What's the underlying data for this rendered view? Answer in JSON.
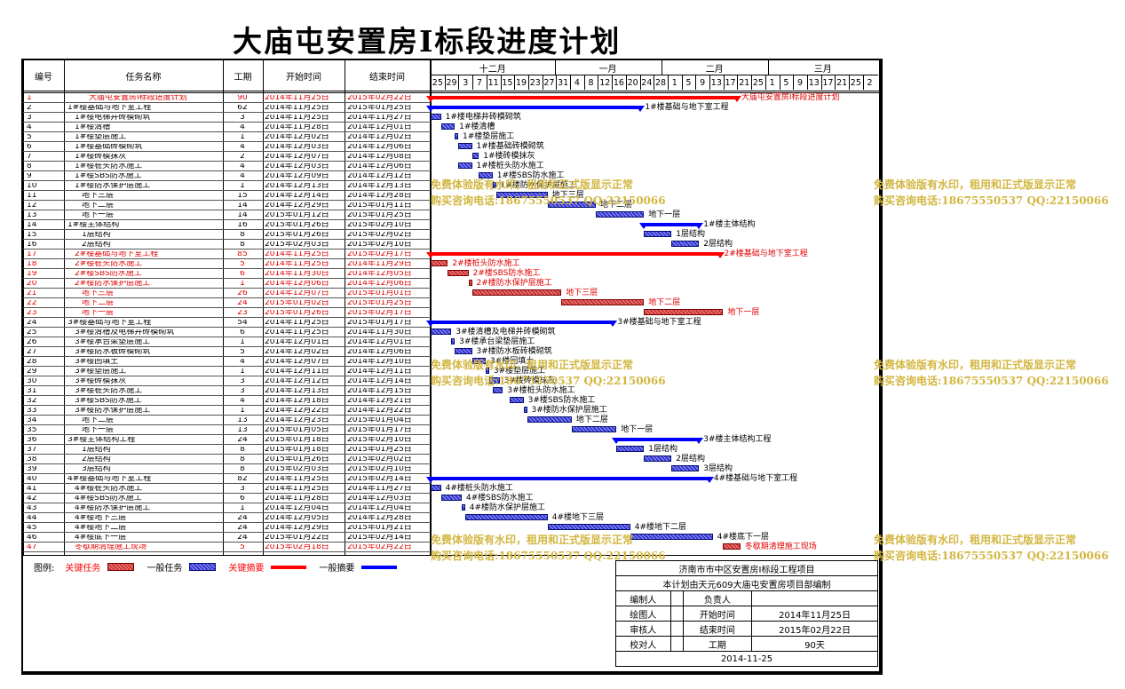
{
  "title": "大庙屯安置房Ⅰ标段进度计划",
  "columns": {
    "id": "编号",
    "name": "任务名称",
    "duration": "工期",
    "start": "开始时间",
    "end": "结束时间"
  },
  "months": [
    "十二月",
    "一月",
    "二月",
    "三月"
  ],
  "days": [
    "25",
    "29",
    "3",
    "7",
    "11",
    "15",
    "19",
    "23",
    "27",
    "31",
    "4",
    "8",
    "12",
    "16",
    "20",
    "24",
    "28",
    "1",
    "5",
    "9",
    "13",
    "17",
    "21",
    "25",
    "1",
    "5",
    "9",
    "13",
    "17",
    "21",
    "25",
    "2"
  ],
  "tasks": [
    {
      "id": "1",
      "name": "大庙屯安置房Ⅰ标段进度计划",
      "dur": "90",
      "start": "2014年11月25日",
      "end": "2015年02月22日",
      "red": true,
      "indent": 3,
      "type": "sum",
      "s": 0,
      "e": 89,
      "label": "大庙屯安置房Ⅰ标段进度计划"
    },
    {
      "id": "2",
      "name": "1#楼基础与地下室工程",
      "dur": "62",
      "start": "2014年11月25日",
      "end": "2015年01月25日",
      "red": false,
      "indent": 0,
      "type": "sum",
      "s": 0,
      "e": 61,
      "label": "1#楼基础与地下室工程"
    },
    {
      "id": "3",
      "name": "1#楼电梯井砖模砌筑",
      "dur": "3",
      "start": "2014年11月25日",
      "end": "2014年11月27日",
      "red": false,
      "indent": 1,
      "type": "task",
      "s": 0,
      "e": 3,
      "label": "1#楼电梯井砖模砌筑"
    },
    {
      "id": "4",
      "name": "1#楼清槽",
      "dur": "4",
      "start": "2014年11月28日",
      "end": "2014年12月01日",
      "red": false,
      "indent": 1,
      "type": "task",
      "s": 3,
      "e": 7,
      "label": "1#楼清槽"
    },
    {
      "id": "5",
      "name": "1#楼垫层施工",
      "dur": "1",
      "start": "2014年12月02日",
      "end": "2014年12月02日",
      "red": false,
      "indent": 1,
      "type": "task",
      "s": 7,
      "e": 8,
      "label": "1#楼垫层施工"
    },
    {
      "id": "6",
      "name": "1#楼基础砖模砌筑",
      "dur": "4",
      "start": "2014年12月03日",
      "end": "2014年12月06日",
      "red": false,
      "indent": 1,
      "type": "task",
      "s": 8,
      "e": 12,
      "label": "1#楼基础砖模砌筑"
    },
    {
      "id": "7",
      "name": "1#楼砖模抹灰",
      "dur": "2",
      "start": "2014年12月07日",
      "end": "2014年12月08日",
      "red": false,
      "indent": 1,
      "type": "task",
      "s": 12,
      "e": 14,
      "label": "1#楼砖模抹灰"
    },
    {
      "id": "8",
      "name": "1#楼桩头防水施工",
      "dur": "4",
      "start": "2014年12月03日",
      "end": "2014年12月06日",
      "red": false,
      "indent": 1,
      "type": "task",
      "s": 8,
      "e": 12,
      "label": "1#楼桩头防水施工"
    },
    {
      "id": "9",
      "name": "1#楼SBS防水施工",
      "dur": "4",
      "start": "2014年12月09日",
      "end": "2014年12月12日",
      "red": false,
      "indent": 1,
      "type": "task",
      "s": 14,
      "e": 18,
      "label": "1#楼SBS防水施工"
    },
    {
      "id": "10",
      "name": "1#楼防水保护层施工",
      "dur": "1",
      "start": "2014年12月13日",
      "end": "2014年12月13日",
      "red": false,
      "indent": 1,
      "type": "task",
      "s": 18,
      "e": 19,
      "label": "1#楼防水保护层施工"
    },
    {
      "id": "11",
      "name": "地下三层",
      "dur": "15",
      "start": "2014年12月14日",
      "end": "2014年12月28日",
      "red": false,
      "indent": 2,
      "type": "task",
      "s": 19,
      "e": 34,
      "label": "地下三层"
    },
    {
      "id": "12",
      "name": "地下二层",
      "dur": "14",
      "start": "2014年12月29日",
      "end": "2015年01月11日",
      "red": false,
      "indent": 2,
      "type": "task",
      "s": 34,
      "e": 48,
      "label": "地下二层"
    },
    {
      "id": "13",
      "name": "地下一层",
      "dur": "14",
      "start": "2015年01月12日",
      "end": "2015年01月25日",
      "red": false,
      "indent": 2,
      "type": "task",
      "s": 48,
      "e": 62,
      "label": "地下一层"
    },
    {
      "id": "14",
      "name": "1#楼主体结构",
      "dur": "16",
      "start": "2015年01月26日",
      "end": "2015年02月10日",
      "red": false,
      "indent": 0,
      "type": "sum",
      "s": 62,
      "e": 78,
      "label": "1#楼主体结构"
    },
    {
      "id": "15",
      "name": "1层结构",
      "dur": "8",
      "start": "2015年01月26日",
      "end": "2015年02月02日",
      "red": false,
      "indent": 2,
      "type": "task",
      "s": 62,
      "e": 70,
      "label": "1层结构"
    },
    {
      "id": "16",
      "name": "2层结构",
      "dur": "8",
      "start": "2015年02月03日",
      "end": "2015年02月10日",
      "red": false,
      "indent": 2,
      "type": "task",
      "s": 70,
      "e": 78,
      "label": "2层结构"
    },
    {
      "id": "17",
      "name": "2#楼基础与地下室工程",
      "dur": "85",
      "start": "2014年11月25日",
      "end": "2015年02月17日",
      "red": true,
      "indent": 1,
      "type": "sum",
      "s": 0,
      "e": 84,
      "label": "2#楼基础与地下室工程"
    },
    {
      "id": "18",
      "name": "2#楼桩头防水施工",
      "dur": "5",
      "start": "2014年11月25日",
      "end": "2014年11月29日",
      "red": true,
      "indent": 1,
      "type": "task",
      "s": 0,
      "e": 5,
      "label": "2#楼桩头防水施工"
    },
    {
      "id": "19",
      "name": "2#楼SBS防水施工",
      "dur": "6",
      "start": "2014年11月30日",
      "end": "2014年12月05日",
      "red": true,
      "indent": 1,
      "type": "task",
      "s": 5,
      "e": 11,
      "label": "2#楼SBS防水施工"
    },
    {
      "id": "20",
      "name": "2#楼防水保护层施工",
      "dur": "1",
      "start": "2014年12月06日",
      "end": "2014年12月06日",
      "red": true,
      "indent": 1,
      "type": "task",
      "s": 11,
      "e": 12,
      "label": "2#楼防水保护层施工"
    },
    {
      "id": "21",
      "name": "地下三层",
      "dur": "26",
      "start": "2014年12月07日",
      "end": "2015年01月01日",
      "red": true,
      "indent": 2,
      "type": "task",
      "s": 12,
      "e": 38,
      "label": "地下三层"
    },
    {
      "id": "22",
      "name": "地下二层",
      "dur": "24",
      "start": "2015年01月02日",
      "end": "2015年01月25日",
      "red": true,
      "indent": 2,
      "type": "task",
      "s": 38,
      "e": 62,
      "label": "地下二层"
    },
    {
      "id": "23",
      "name": "地下一层",
      "dur": "23",
      "start": "2015年01月26日",
      "end": "2015年02月17日",
      "red": true,
      "indent": 2,
      "type": "task",
      "s": 62,
      "e": 85,
      "label": "地下一层"
    },
    {
      "id": "24",
      "name": "3#楼基础与地下室工程",
      "dur": "54",
      "start": "2014年11月25日",
      "end": "2015年01月17日",
      "red": false,
      "indent": 0,
      "type": "sum",
      "s": 0,
      "e": 53,
      "label": "3#楼基础与地下室工程"
    },
    {
      "id": "25",
      "name": "3#楼清槽及电梯井砖模砌筑",
      "dur": "6",
      "start": "2014年11月25日",
      "end": "2014年11月30日",
      "red": false,
      "indent": 1,
      "type": "task",
      "s": 0,
      "e": 6,
      "label": "3#楼清槽及电梯井砖模砌筑"
    },
    {
      "id": "26",
      "name": "3#楼承台梁垫层施工",
      "dur": "1",
      "start": "2014年12月01日",
      "end": "2014年12月01日",
      "red": false,
      "indent": 1,
      "type": "task",
      "s": 6,
      "e": 7,
      "label": "3#楼承台梁垫层施工"
    },
    {
      "id": "27",
      "name": "3#楼防水板砖模砌筑",
      "dur": "5",
      "start": "2014年12月02日",
      "end": "2014年12月06日",
      "red": false,
      "indent": 1,
      "type": "task",
      "s": 7,
      "e": 12,
      "label": "3#楼防水板砖模砌筑"
    },
    {
      "id": "28",
      "name": "3#楼回填土",
      "dur": "4",
      "start": "2014年12月07日",
      "end": "2014年12月10日",
      "red": false,
      "indent": 1,
      "type": "task",
      "s": 12,
      "e": 16,
      "label": "3#楼回填土"
    },
    {
      "id": "29",
      "name": "3#楼垫层施工",
      "dur": "1",
      "start": "2014年12月11日",
      "end": "2014年12月11日",
      "red": false,
      "indent": 1,
      "type": "task",
      "s": 16,
      "e": 17,
      "label": "3#楼垫层施工"
    },
    {
      "id": "30",
      "name": "3#楼砖模抹灰",
      "dur": "3",
      "start": "2014年12月12日",
      "end": "2014年12月14日",
      "red": false,
      "indent": 1,
      "type": "task",
      "s": 17,
      "e": 20,
      "label": "3#楼砖模抹灰"
    },
    {
      "id": "31",
      "name": "3#楼桩头防水施工",
      "dur": "3",
      "start": "2014年12月13日",
      "end": "2014年12月15日",
      "red": false,
      "indent": 1,
      "type": "task",
      "s": 18,
      "e": 21,
      "label": "3#楼桩头防水施工"
    },
    {
      "id": "32",
      "name": "3#楼SBS防水施工",
      "dur": "4",
      "start": "2014年12月18日",
      "end": "2014年12月21日",
      "red": false,
      "indent": 1,
      "type": "task",
      "s": 23,
      "e": 27,
      "label": "3#楼SBS防水施工"
    },
    {
      "id": "33",
      "name": "3#楼防水保护层施工",
      "dur": "1",
      "start": "2014年12月22日",
      "end": "2014年12月22日",
      "red": false,
      "indent": 1,
      "type": "task",
      "s": 27,
      "e": 28,
      "label": "3#楼防水保护层施工"
    },
    {
      "id": "34",
      "name": "地下二层",
      "dur": "13",
      "start": "2014年12月23日",
      "end": "2015年01月04日",
      "red": false,
      "indent": 2,
      "type": "task",
      "s": 28,
      "e": 41,
      "label": "地下二层"
    },
    {
      "id": "35",
      "name": "地下一层",
      "dur": "13",
      "start": "2015年01月05日",
      "end": "2015年01月17日",
      "red": false,
      "indent": 2,
      "type": "task",
      "s": 41,
      "e": 54,
      "label": "地下一层"
    },
    {
      "id": "36",
      "name": "3#楼主体结构工程",
      "dur": "24",
      "start": "2015年01月18日",
      "end": "2015年02月10日",
      "red": false,
      "indent": 0,
      "type": "sum",
      "s": 54,
      "e": 78,
      "label": "3#楼主体结构工程"
    },
    {
      "id": "37",
      "name": "1层结构",
      "dur": "8",
      "start": "2015年01月18日",
      "end": "2015年01月25日",
      "red": false,
      "indent": 2,
      "type": "task",
      "s": 54,
      "e": 62,
      "label": "1层结构"
    },
    {
      "id": "38",
      "name": "2层结构",
      "dur": "8",
      "start": "2015年01月26日",
      "end": "2015年02月02日",
      "red": false,
      "indent": 2,
      "type": "task",
      "s": 62,
      "e": 70,
      "label": "2层结构"
    },
    {
      "id": "39",
      "name": "3层结构",
      "dur": "8",
      "start": "2015年02月03日",
      "end": "2015年02月10日",
      "red": false,
      "indent": 2,
      "type": "task",
      "s": 70,
      "e": 78,
      "label": "3层结构"
    },
    {
      "id": "40",
      "name": "4#楼基础与地下室工程",
      "dur": "82",
      "start": "2014年11月25日",
      "end": "2015年02月14日",
      "red": false,
      "indent": 0,
      "type": "sum",
      "s": 0,
      "e": 81,
      "label": "4#楼基础与地下室工程"
    },
    {
      "id": "41",
      "name": "4#楼桩头防水施工",
      "dur": "3",
      "start": "2014年11月25日",
      "end": "2014年11月27日",
      "red": false,
      "indent": 1,
      "type": "task",
      "s": 0,
      "e": 3,
      "label": "4#楼桩头防水施工"
    },
    {
      "id": "42",
      "name": "4#楼SBS防水施工",
      "dur": "6",
      "start": "2014年11月28日",
      "end": "2014年12月03日",
      "red": false,
      "indent": 1,
      "type": "task",
      "s": 3,
      "e": 9,
      "label": "4#楼SBS防水施工"
    },
    {
      "id": "43",
      "name": "4#楼防水保护层施工",
      "dur": "1",
      "start": "2014年12月04日",
      "end": "2014年12月04日",
      "red": false,
      "indent": 1,
      "type": "task",
      "s": 9,
      "e": 10,
      "label": "4#楼防水保护层施工"
    },
    {
      "id": "44",
      "name": "4#楼地下三层",
      "dur": "24",
      "start": "2014年12月05日",
      "end": "2014年12月28日",
      "red": false,
      "indent": 1,
      "type": "task",
      "s": 10,
      "e": 34,
      "label": "4#楼地下三层"
    },
    {
      "id": "45",
      "name": "4#楼地下二层",
      "dur": "24",
      "start": "2014年12月29日",
      "end": "2015年01月21日",
      "red": false,
      "indent": 1,
      "type": "task",
      "s": 34,
      "e": 58,
      "label": "4#楼地下二层"
    },
    {
      "id": "46",
      "name": "4#楼底下一层",
      "dur": "24",
      "start": "2015年01月22日",
      "end": "2015年02月14日",
      "red": false,
      "indent": 1,
      "type": "task",
      "s": 58,
      "e": 82,
      "label": "4#楼底下一层"
    },
    {
      "id": "47",
      "name": "冬歇期清理施工现场",
      "dur": "5",
      "start": "2015年02月18日",
      "end": "2015年02月22日",
      "red": true,
      "indent": 1,
      "type": "task",
      "s": 85,
      "e": 90,
      "label": "冬歇期清理施工现场"
    }
  ],
  "watermark": {
    "line1": "免费体验版有水印，租用和正式版显示正常",
    "line2": "购买咨询电话:18675550537 QQ:22150066"
  },
  "legend": {
    "title": "图例:",
    "critical_task": "关键任务",
    "normal_task": "一般任务",
    "critical_summary": "关键摘要",
    "normal_summary": "一般摘要"
  },
  "info": {
    "project": "济南市市中区安置房Ⅰ标段工程项目",
    "prepared_by": "本计划由天元609大庙屯安置房项目部编制",
    "rows": [
      [
        "编制人",
        "",
        "负责人",
        ""
      ],
      [
        "绘图人",
        "",
        "开始时间",
        "2014年11月25日"
      ],
      [
        "审核人",
        "",
        "结束时间",
        "2015年02月22日"
      ],
      [
        "校对人",
        "",
        "工期",
        "90天"
      ]
    ],
    "date": "2014-11-25"
  },
  "colors": {
    "critical": "#ff0000",
    "normal": "#0000ff",
    "watermark": "#d2b640"
  }
}
